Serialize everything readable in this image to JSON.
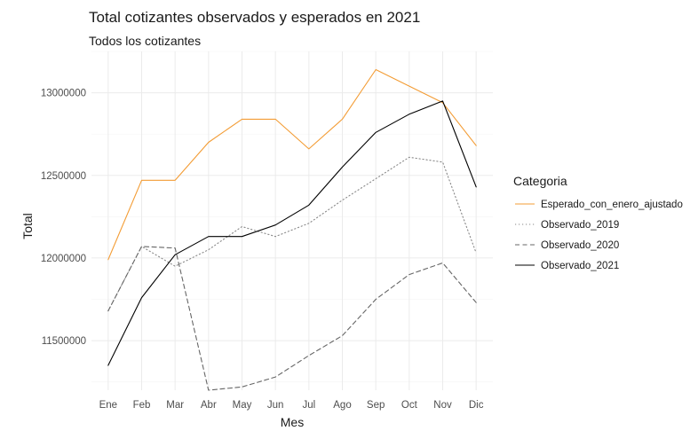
{
  "chart_data": {
    "type": "line",
    "title": "Total cotizantes observados y esperados en 2021",
    "subtitle": "Todos los cotizantes",
    "xlabel": "Mes",
    "ylabel": "Total",
    "categories": [
      "Ene",
      "Feb",
      "Mar",
      "Abr",
      "May",
      "Jun",
      "Jul",
      "Ago",
      "Sep",
      "Oct",
      "Nov",
      "Dic"
    ],
    "ylim": [
      11200000,
      13250000
    ],
    "yticks": [
      11500000,
      12000000,
      12500000,
      13000000
    ],
    "ytick_labels": [
      "11500000",
      "12000000",
      "12500000",
      "13000000"
    ],
    "grid": true,
    "legend": {
      "title": "Categoria",
      "position": "right"
    },
    "series": [
      {
        "name": "Esperado_con_enero_ajustado",
        "color": "#f39c34",
        "dash": "solid",
        "values": [
          11990000,
          12470000,
          12470000,
          12700000,
          12840000,
          12840000,
          12660000,
          12840000,
          13140000,
          13040000,
          12940000,
          12680000
        ]
      },
      {
        "name": "Observado_2019",
        "color": "#888888",
        "dash": "dotted",
        "values": [
          11680000,
          12070000,
          11950000,
          12050000,
          12190000,
          12130000,
          12210000,
          12350000,
          12480000,
          12610000,
          12580000,
          12030000
        ]
      },
      {
        "name": "Observado_2020",
        "color": "#666666",
        "dash": "dashed",
        "values": [
          11680000,
          12070000,
          12060000,
          11200000,
          11220000,
          11280000,
          11410000,
          11530000,
          11750000,
          11900000,
          11970000,
          11730000
        ]
      },
      {
        "name": "Observado_2021",
        "color": "#000000",
        "dash": "solid",
        "values": [
          11350000,
          11760000,
          12020000,
          12130000,
          12130000,
          12200000,
          12320000,
          12550000,
          12760000,
          12870000,
          12950000,
          12430000
        ]
      }
    ]
  }
}
